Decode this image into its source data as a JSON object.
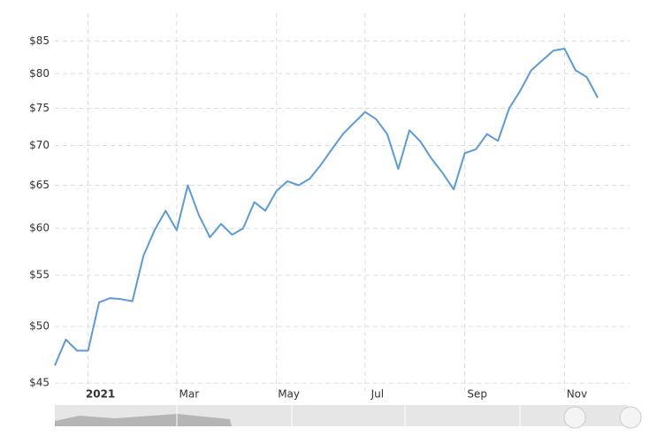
{
  "chart_data": {
    "type": "line",
    "color": "#5b9bd9",
    "log_scale": true,
    "grid": true,
    "categories": [
      null,
      null,
      null,
      "2021",
      null,
      null,
      null,
      null,
      null,
      null,
      null,
      "Mar",
      null,
      null,
      null,
      null,
      null,
      null,
      null,
      null,
      "May",
      null,
      null,
      null,
      null,
      null,
      null,
      null,
      "Jul",
      null,
      null,
      null,
      null,
      null,
      null,
      null,
      null,
      "Sep",
      null,
      null,
      null,
      null,
      null,
      null,
      null,
      null,
      "Nov",
      null,
      null,
      null
    ],
    "values": [
      46.5,
      48.8,
      47.8,
      47.8,
      52.3,
      52.7,
      52.6,
      52.4,
      57,
      59.8,
      62,
      59.8,
      65,
      61.5,
      59,
      60.5,
      59.3,
      60,
      63,
      62,
      64.3,
      65.5,
      65,
      65.8,
      67.5,
      69.5,
      71.5,
      73,
      74.5,
      73.5,
      71.5,
      67,
      72,
      70.5,
      68.3,
      66.5,
      64.5,
      69,
      69.5,
      71.5,
      70.6,
      75,
      77.5,
      80.5,
      82,
      83.5,
      83.8,
      80.5,
      79.5,
      76.5
    ],
    "ylim": [
      44.5,
      89.5
    ],
    "yticks": [
      {
        "value": 45,
        "label": "$45"
      },
      {
        "value": 50,
        "label": "$50"
      },
      {
        "value": 55,
        "label": "$55"
      },
      {
        "value": 60,
        "label": "$60"
      },
      {
        "value": 65,
        "label": "$65"
      },
      {
        "value": 70,
        "label": "$70"
      },
      {
        "value": 75,
        "label": "$75"
      },
      {
        "value": 80,
        "label": "$80"
      },
      {
        "value": 85,
        "label": "$85"
      }
    ]
  }
}
